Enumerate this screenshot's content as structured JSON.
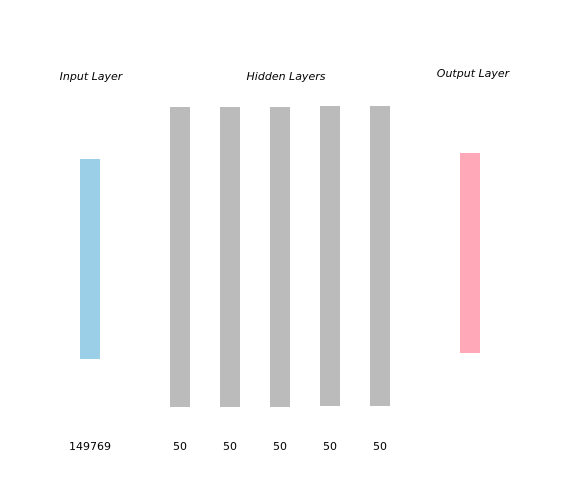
{
  "labels": {
    "input": "Input Layer",
    "hidden": "Hidden Layers",
    "output": "Output Layer"
  },
  "layers": [
    {
      "role": "input",
      "size": "149769",
      "color": "#9acfe7"
    },
    {
      "role": "hidden",
      "size": "50",
      "color": "#bbbbbb"
    },
    {
      "role": "hidden",
      "size": "50",
      "color": "#bbbbbb"
    },
    {
      "role": "hidden",
      "size": "50",
      "color": "#bbbbbb"
    },
    {
      "role": "hidden",
      "size": "50",
      "color": "#bbbbbb"
    },
    {
      "role": "hidden",
      "size": "50",
      "color": "#bbbbbb"
    },
    {
      "role": "output",
      "size": "",
      "color": "#ffa8b8"
    }
  ]
}
